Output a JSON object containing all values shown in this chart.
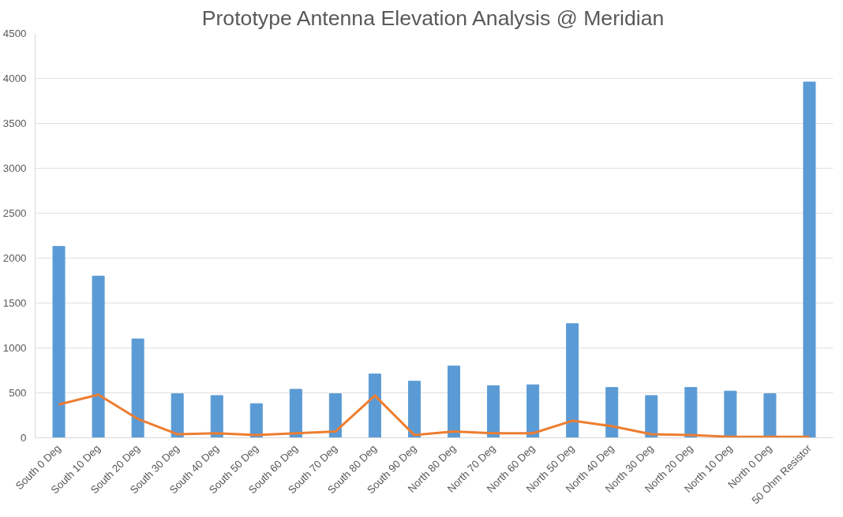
{
  "chart_data": {
    "type": "bar",
    "title": "Prototype Antenna Elevation Analysis @ Meridian",
    "categories": [
      "South 0 Deg",
      "South 10 Deg",
      "South 20 Deg",
      "South 30 Deg",
      "South 40 Deg",
      "South 50 Deg",
      "South 60 Deg",
      "South 70 Deg",
      "South 80 Deg",
      "South 90 Deg",
      "North 80 Deg",
      "North 70 Deg",
      "North 60 Deg",
      "North 50 Deg",
      "North 40 Deg",
      "North 30 Deg",
      "North 20 Deg",
      "North 10 Deg",
      "North 0 Deg",
      "50 Ohm Resistor"
    ],
    "series": [
      {
        "color": "#5b9bd5",
        "values": [
          2130,
          1800,
          1100,
          490,
          470,
          380,
          540,
          490,
          710,
          630,
          800,
          580,
          590,
          1270,
          560,
          470,
          560,
          520,
          490,
          3960
        ]
      },
      {
        "type": "line",
        "color": "#ed7d31",
        "values": [
          370,
          480,
          210,
          40,
          50,
          30,
          50,
          70,
          470,
          30,
          70,
          50,
          50,
          190,
          130,
          40,
          30,
          10,
          10,
          10
        ]
      }
    ],
    "ylim": [
      0,
      4500
    ],
    "yticks": [
      0,
      500,
      1000,
      1500,
      2000,
      2500,
      3000,
      3500,
      4000,
      4500
    ],
    "grid": "y"
  }
}
